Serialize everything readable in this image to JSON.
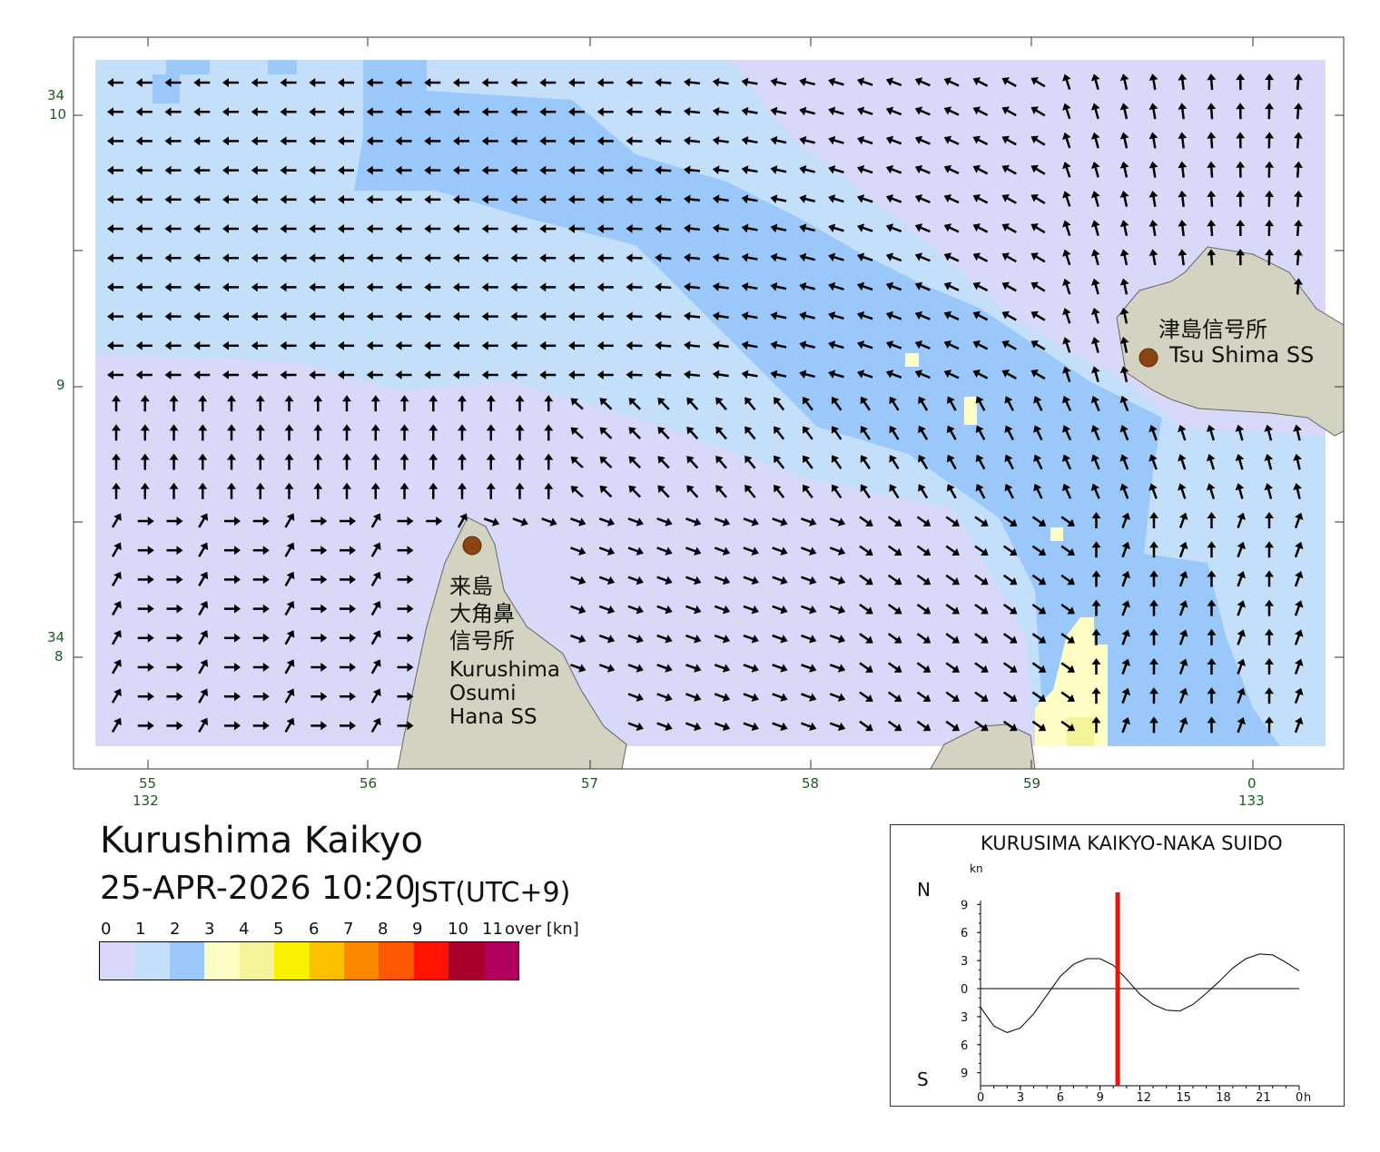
{
  "map": {
    "title": "Kurushima Kaikyo",
    "datetime": "25-APR-2026 10:20",
    "timezone": "JST(UTC+9)",
    "lat_labels": [
      {
        "deg": "34",
        "min": "10"
      },
      {
        "deg": "",
        "min": "9"
      },
      {
        "deg": "34",
        "min": "8"
      }
    ],
    "lon_labels": [
      {
        "min": "55",
        "deg": "132"
      },
      {
        "min": "56",
        "deg": ""
      },
      {
        "min": "57",
        "deg": ""
      },
      {
        "min": "58",
        "deg": ""
      },
      {
        "min": "59",
        "deg": ""
      },
      {
        "min": "0",
        "deg": "133"
      }
    ],
    "places": {
      "tsushima": {
        "jp": "津島信号所",
        "en": "Tsu Shima SS"
      },
      "kurushima": {
        "jp1": "来島",
        "jp2": "大角鼻",
        "jp3": "信号所",
        "en1": "Kurushima",
        "en2": "Osumi",
        "en3": "Hana SS"
      }
    },
    "station_marker_color": "#8b4513",
    "land_color": "#d4d2c0"
  },
  "legend": {
    "labels": [
      "0",
      "1",
      "2",
      "3",
      "4",
      "5",
      "6",
      "7",
      "8",
      "9",
      "10",
      "11",
      "over [kn]"
    ],
    "colors": [
      "#d8d8f8",
      "#c4dffa",
      "#9ac8fa",
      "#fffec4",
      "#f5f39a",
      "#f8f000",
      "#fcc000",
      "#fc8800",
      "#fc5800",
      "#fc1400",
      "#a8002a",
      "#b0005c"
    ]
  },
  "tide_chart": {
    "title": "KURUSIMA KAIKYO-NAKA SUIDO",
    "unit": "kn",
    "north_label": "N",
    "south_label": "S",
    "y_tick_labels": [
      "9",
      "6",
      "3",
      "0",
      "3",
      "6",
      "9"
    ],
    "x_tick_labels": [
      "0",
      "3",
      "6",
      "9",
      "12",
      "15",
      "18",
      "21",
      "0"
    ],
    "x_unit": "h",
    "current_time_h": 10.33,
    "marker_color": "#e8140c"
  },
  "chart_data": {
    "type": "line",
    "title": "KURUSIMA KAIKYO-NAKA SUIDO",
    "ylabel": "kn",
    "xlabel": "h",
    "ylim": [
      -9,
      9
    ],
    "xlim": [
      0,
      24
    ],
    "series": [
      {
        "x": [
          0,
          1,
          2,
          3,
          4,
          5,
          6,
          7,
          8,
          9,
          10,
          11,
          12,
          13,
          14,
          15,
          16,
          17,
          18,
          19,
          20,
          21,
          22,
          23,
          24
        ],
        "values": [
          -2.0,
          -4.0,
          -4.7,
          -4.2,
          -2.7,
          -0.7,
          1.3,
          2.6,
          3.2,
          3.2,
          2.5,
          1.0,
          -0.6,
          -1.7,
          -2.3,
          -2.4,
          -1.7,
          -0.5,
          0.8,
          2.2,
          3.2,
          3.7,
          3.6,
          2.8,
          1.9
        ]
      }
    ]
  }
}
